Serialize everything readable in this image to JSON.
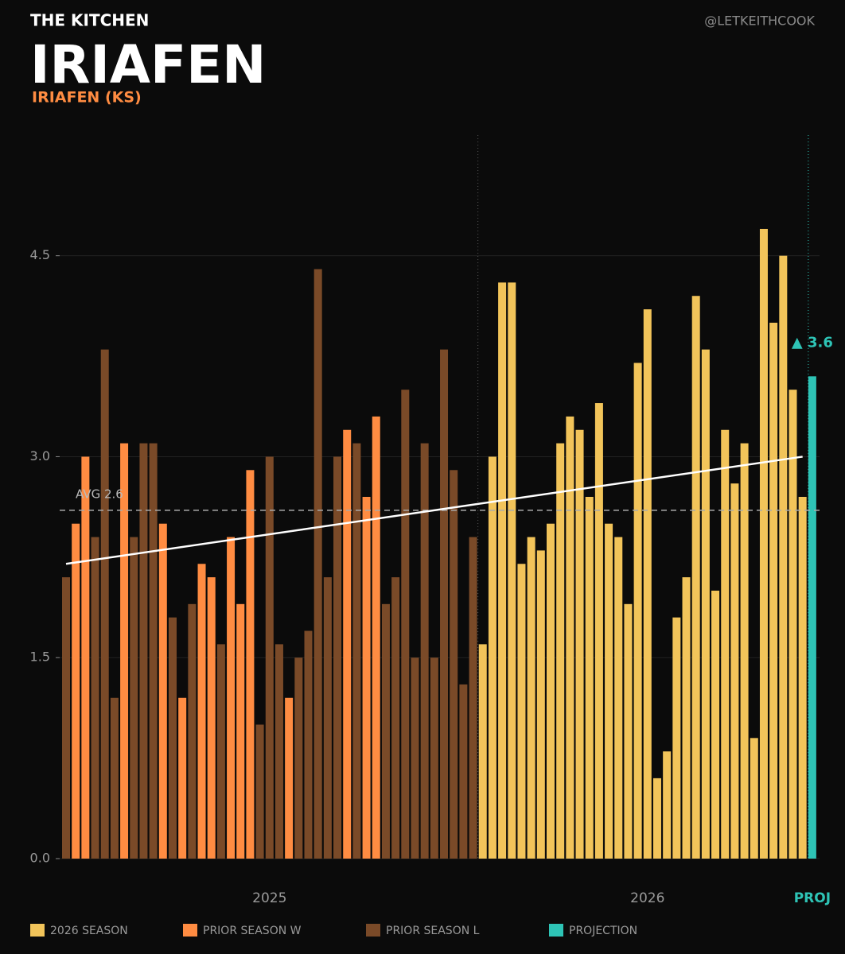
{
  "header": {
    "kicker": "THE KITCHEN",
    "title": "IRIAFEN",
    "subtitle": "IRIAFEN (KS)",
    "handle": "@LETKEITHCOOK"
  },
  "chart_data": {
    "type": "bar",
    "categories": [
      null,
      null,
      null,
      null,
      null,
      null,
      null,
      null,
      null,
      null,
      null,
      null,
      null,
      null,
      null,
      null,
      null,
      null,
      null,
      null,
      null,
      "2025",
      null,
      null,
      null,
      null,
      null,
      null,
      null,
      null,
      null,
      null,
      null,
      null,
      null,
      null,
      null,
      null,
      null,
      null,
      null,
      null,
      null,
      null,
      null,
      null,
      null,
      null,
      null,
      null,
      null,
      null,
      null,
      null,
      null,
      null,
      null,
      null,
      null,
      null,
      "2026",
      null,
      null,
      null,
      null,
      null,
      null,
      null,
      null,
      null,
      null,
      null,
      null,
      null,
      null,
      null,
      null,
      "PROJ"
    ],
    "series": [
      {
        "name": "2026 SEASON",
        "color": "#f2c45a",
        "values": [
          null,
          null,
          null,
          null,
          null,
          null,
          null,
          null,
          null,
          null,
          null,
          null,
          null,
          null,
          null,
          null,
          null,
          null,
          null,
          null,
          null,
          null,
          null,
          null,
          null,
          null,
          null,
          null,
          null,
          null,
          null,
          null,
          null,
          null,
          null,
          null,
          null,
          null,
          null,
          null,
          null,
          null,
          null,
          1.6,
          3.0,
          4.3,
          4.3,
          2.2,
          2.4,
          2.3,
          2.5,
          3.1,
          3.3,
          3.2,
          2.7,
          3.4,
          2.5,
          2.4,
          1.9,
          3.7,
          4.1,
          0.6,
          0.8,
          1.8,
          2.1,
          4.2,
          3.8,
          2.0,
          3.2,
          2.8,
          3.1,
          0.9,
          4.7,
          4.0,
          4.5,
          3.5,
          2.7,
          null
        ]
      },
      {
        "name": "PRIOR SEASON W",
        "color": "#ff8c42",
        "values": [
          null,
          2.5,
          3.0,
          null,
          null,
          null,
          3.1,
          null,
          null,
          null,
          2.5,
          null,
          1.2,
          null,
          2.2,
          2.1,
          null,
          2.4,
          1.9,
          2.9,
          null,
          null,
          null,
          1.2,
          null,
          null,
          null,
          null,
          null,
          3.2,
          null,
          2.7,
          3.3,
          null,
          null,
          null,
          null,
          null,
          null,
          null,
          null,
          null,
          null,
          null,
          null,
          null,
          null,
          null,
          null,
          null,
          null,
          null,
          null,
          null,
          null,
          null,
          null,
          null,
          null,
          null,
          null,
          null,
          null,
          null,
          null,
          null,
          null,
          null,
          null,
          null,
          null,
          null,
          null,
          null,
          null,
          null,
          null,
          null
        ]
      },
      {
        "name": "PRIOR SEASON L",
        "color": "#7a4a28",
        "values": [
          2.1,
          null,
          null,
          2.4,
          3.8,
          1.2,
          null,
          2.4,
          3.1,
          3.1,
          null,
          1.8,
          null,
          1.9,
          null,
          null,
          1.6,
          null,
          null,
          null,
          1.0,
          3.0,
          1.6,
          null,
          1.5,
          1.7,
          4.4,
          2.1,
          3.0,
          null,
          3.1,
          null,
          null,
          1.9,
          2.1,
          3.5,
          1.5,
          3.1,
          1.5,
          3.8,
          2.9,
          1.3,
          2.4,
          null,
          null,
          null,
          null,
          null,
          null,
          null,
          null,
          null,
          null,
          null,
          null,
          null,
          null,
          null,
          null,
          null,
          null,
          null,
          null,
          null,
          null,
          null,
          null,
          null,
          null,
          null,
          null,
          null,
          null,
          null,
          null,
          null,
          null,
          null
        ]
      },
      {
        "name": "PROJECTION",
        "color": "#2ec4b6",
        "values": [
          null,
          null,
          null,
          null,
          null,
          null,
          null,
          null,
          null,
          null,
          null,
          null,
          null,
          null,
          null,
          null,
          null,
          null,
          null,
          null,
          null,
          null,
          null,
          null,
          null,
          null,
          null,
          null,
          null,
          null,
          null,
          null,
          null,
          null,
          null,
          null,
          null,
          null,
          null,
          null,
          null,
          null,
          null,
          null,
          null,
          null,
          null,
          null,
          null,
          null,
          null,
          null,
          null,
          null,
          null,
          null,
          null,
          null,
          null,
          null,
          null,
          null,
          null,
          null,
          null,
          null,
          null,
          null,
          null,
          null,
          null,
          null,
          null,
          null,
          null,
          null,
          null,
          3.6
        ],
        "value_labels": [
          null,
          null,
          null,
          null,
          null,
          null,
          null,
          null,
          null,
          null,
          null,
          null,
          null,
          null,
          null,
          null,
          null,
          null,
          null,
          null,
          null,
          null,
          null,
          null,
          null,
          null,
          null,
          null,
          null,
          null,
          null,
          null,
          null,
          null,
          null,
          null,
          null,
          null,
          null,
          null,
          null,
          null,
          null,
          null,
          null,
          null,
          null,
          null,
          null,
          null,
          null,
          null,
          null,
          null,
          null,
          null,
          null,
          null,
          null,
          null,
          null,
          null,
          null,
          null,
          null,
          null,
          null,
          null,
          null,
          null,
          null,
          null,
          null,
          null,
          null,
          null,
          null,
          "▲ 3.6"
        ]
      }
    ],
    "average": {
      "value": 2.6,
      "label": "AVG 2.6"
    },
    "trend": {
      "start": 2.2,
      "end": 3.0
    },
    "ylim": [
      0,
      5.4
    ],
    "yticks": [
      {
        "value": 0,
        "label": "0.0"
      },
      {
        "value": 1.5,
        "label": "1.5"
      },
      {
        "value": 3,
        "label": "3.0"
      },
      {
        "value": 4.5,
        "label": "4.5"
      }
    ],
    "grid": true
  }
}
